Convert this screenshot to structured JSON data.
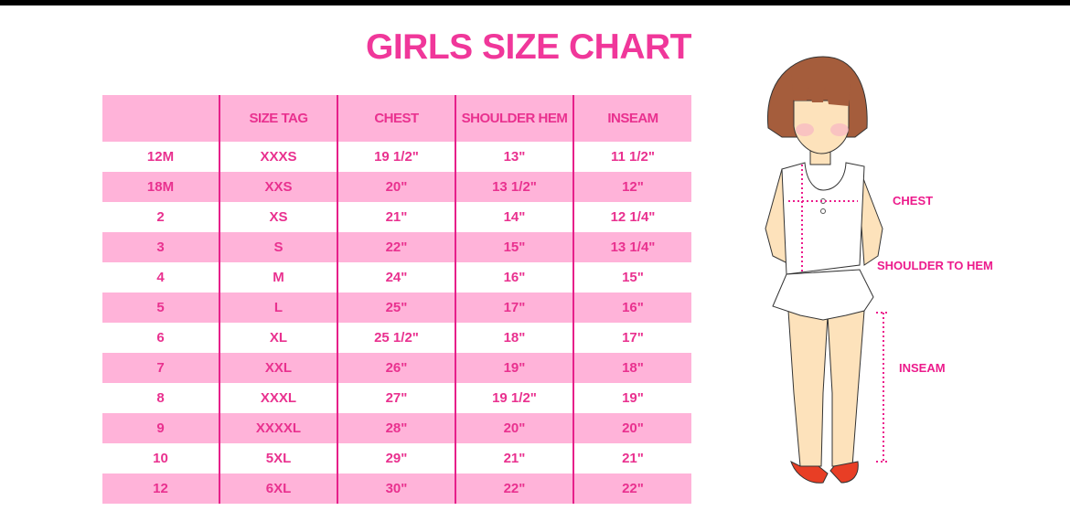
{
  "title": "GIRLS SIZE CHART",
  "table": {
    "headers": [
      "",
      "SIZE TAG",
      "CHEST",
      "SHOULDER HEM",
      "INSEAM"
    ],
    "rows": [
      [
        "12M",
        "XXXS",
        "19 1/2\"",
        "13\"",
        "11 1/2\""
      ],
      [
        "18M",
        "XXS",
        "20\"",
        "13 1/2\"",
        "12\""
      ],
      [
        "2",
        "XS",
        "21\"",
        "14\"",
        "12 1/4\""
      ],
      [
        "3",
        "S",
        "22\"",
        "15\"",
        "13 1/4\""
      ],
      [
        "4",
        "M",
        "24\"",
        "16\"",
        "15\""
      ],
      [
        "5",
        "L",
        "25\"",
        "17\"",
        "16\""
      ],
      [
        "6",
        "XL",
        "25 1/2\"",
        "18\"",
        "17\""
      ],
      [
        "7",
        "XXL",
        "26\"",
        "19\"",
        "18\""
      ],
      [
        "8",
        "XXXL",
        "27\"",
        "19 1/2\"",
        "19\""
      ],
      [
        "9",
        "XXXXL",
        "28\"",
        "20\"",
        "20\""
      ],
      [
        "10",
        "5XL",
        "29\"",
        "21\"",
        "21\""
      ],
      [
        "12",
        "6XL",
        "30\"",
        "22\"",
        "22\""
      ]
    ]
  },
  "illustration": {
    "labels": {
      "chest": "CHEST",
      "shoulder_to_hem": "SHOULDER TO HEM",
      "inseam": "INSEAM"
    }
  },
  "colors": {
    "accent": "#f0379a",
    "row_pink": "#ffb3d9",
    "text": "#e9318f"
  }
}
